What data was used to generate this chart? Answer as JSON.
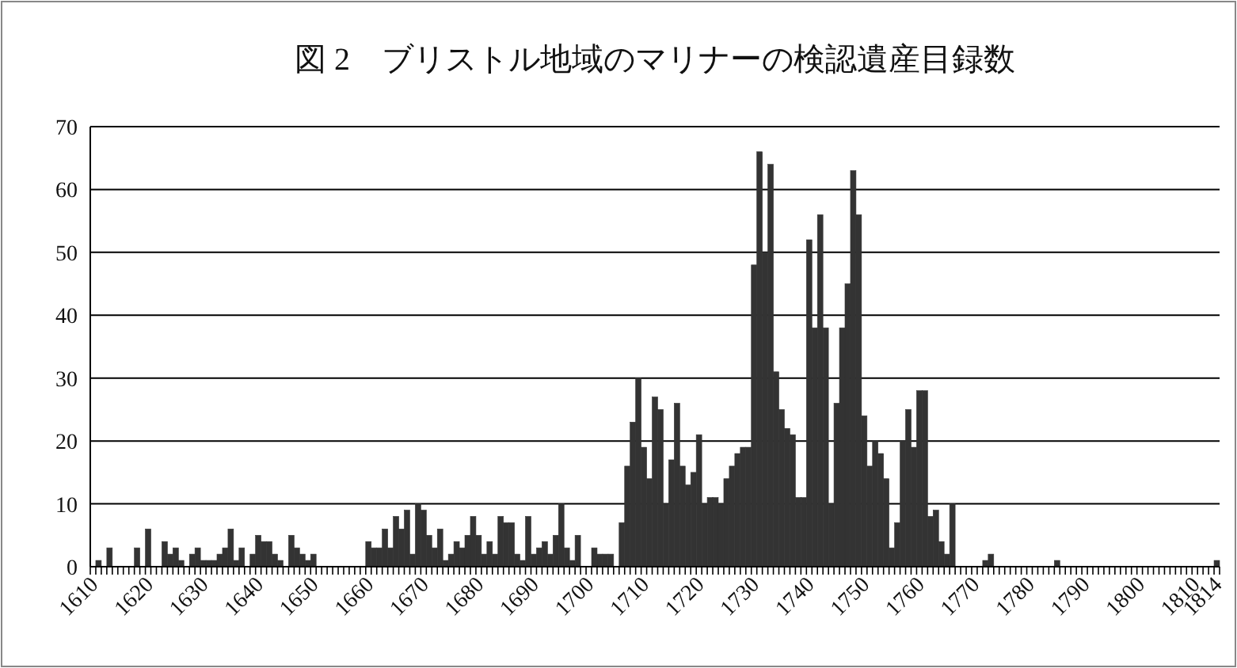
{
  "chart_data": {
    "type": "bar",
    "title": "図 2　ブリストル地域のマリナーの検認遺産目録数",
    "categories": [
      "1610",
      null,
      null,
      null,
      null,
      null,
      null,
      null,
      null,
      null,
      "1620",
      null,
      null,
      null,
      null,
      null,
      null,
      null,
      null,
      null,
      "1630",
      null,
      null,
      null,
      null,
      null,
      null,
      null,
      null,
      null,
      "1640",
      null,
      null,
      null,
      null,
      null,
      null,
      null,
      null,
      null,
      "1650",
      null,
      null,
      null,
      null,
      null,
      null,
      null,
      null,
      null,
      "1660",
      null,
      null,
      null,
      null,
      null,
      null,
      null,
      null,
      null,
      "1670",
      null,
      null,
      null,
      null,
      null,
      null,
      null,
      null,
      null,
      "1680",
      null,
      null,
      null,
      null,
      null,
      null,
      null,
      null,
      null,
      "1690",
      null,
      null,
      null,
      null,
      null,
      null,
      null,
      null,
      null,
      "1700",
      null,
      null,
      null,
      null,
      null,
      null,
      null,
      null,
      null,
      "1710",
      null,
      null,
      null,
      null,
      null,
      null,
      null,
      null,
      null,
      "1720",
      null,
      null,
      null,
      null,
      null,
      null,
      null,
      null,
      null,
      "1730",
      null,
      null,
      null,
      null,
      null,
      null,
      null,
      null,
      null,
      "1740",
      null,
      null,
      null,
      null,
      null,
      null,
      null,
      null,
      null,
      "1750",
      null,
      null,
      null,
      null,
      null,
      null,
      null,
      null,
      null,
      "1760",
      null,
      null,
      null,
      null,
      null,
      null,
      null,
      null,
      null,
      "1770",
      null,
      null,
      null,
      null,
      null,
      null,
      null,
      null,
      null,
      "1780",
      null,
      null,
      null,
      null,
      null,
      null,
      null,
      null,
      null,
      "1790",
      null,
      null,
      null,
      null,
      null,
      null,
      null,
      null,
      null,
      "1800",
      null,
      null,
      null,
      null,
      null,
      null,
      null,
      null,
      null,
      "1810",
      null,
      null,
      null,
      "1814"
    ],
    "values": [
      0,
      1,
      0,
      3,
      0,
      0,
      0,
      0,
      3,
      0,
      6,
      0,
      0,
      4,
      2,
      3,
      1,
      0,
      2,
      3,
      1,
      1,
      1,
      2,
      3,
      6,
      1,
      3,
      0,
      2,
      5,
      4,
      4,
      2,
      1,
      0,
      5,
      3,
      2,
      1,
      2,
      0,
      0,
      0,
      0,
      0,
      0,
      0,
      0,
      0,
      4,
      3,
      3,
      6,
      3,
      8,
      6,
      9,
      2,
      10,
      9,
      5,
      3,
      6,
      1,
      2,
      4,
      3,
      5,
      8,
      5,
      2,
      4,
      2,
      8,
      7,
      7,
      2,
      1,
      8,
      2,
      3,
      4,
      2,
      5,
      10,
      3,
      1,
      5,
      0,
      0,
      3,
      2,
      2,
      2,
      0,
      7,
      16,
      23,
      30,
      19,
      14,
      27,
      25,
      10,
      17,
      26,
      16,
      13,
      15,
      21,
      10,
      11,
      11,
      10,
      14,
      16,
      18,
      19,
      19,
      48,
      66,
      50,
      64,
      31,
      25,
      22,
      21,
      11,
      11,
      52,
      38,
      56,
      38,
      10,
      26,
      38,
      45,
      63,
      56,
      24,
      16,
      20,
      18,
      14,
      3,
      7,
      20,
      25,
      19,
      28,
      28,
      8,
      9,
      4,
      2,
      10,
      0,
      0,
      0,
      0,
      0,
      1,
      2,
      0,
      0,
      0,
      0,
      0,
      0,
      0,
      0,
      0,
      0,
      0,
      1,
      0,
      0,
      0,
      0,
      0,
      0,
      0,
      0,
      0,
      0,
      0,
      0,
      0,
      0,
      0,
      0,
      0,
      0,
      0,
      0,
      0,
      0,
      0,
      0,
      0,
      0,
      0,
      0,
      1
    ],
    "color": "#333333",
    "ylim": [
      0,
      70
    ],
    "yticks": [
      0,
      10,
      20,
      30,
      40,
      50,
      60,
      70
    ],
    "grid": "y"
  }
}
